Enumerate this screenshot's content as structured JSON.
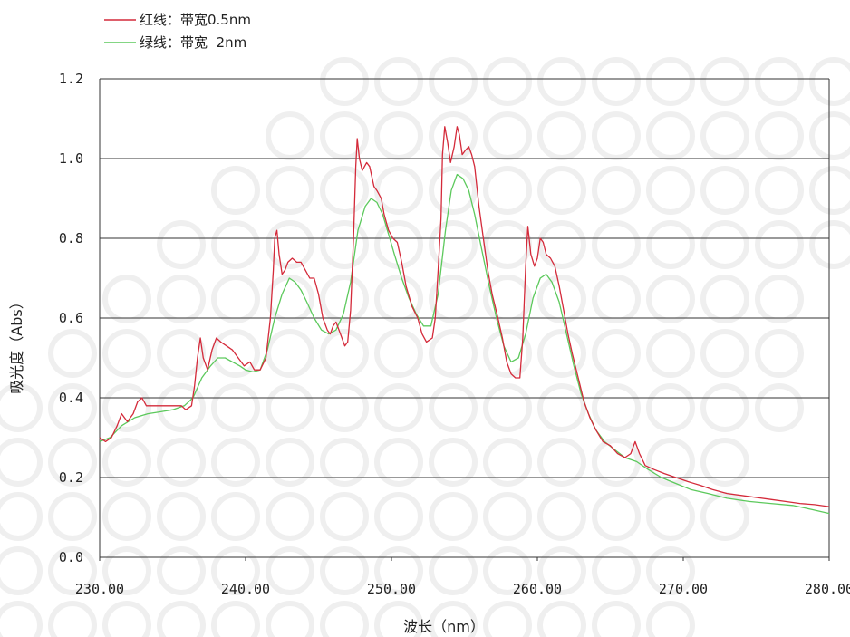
{
  "chart_data": {
    "type": "line",
    "xlabel": "波长（nm）",
    "ylabel": "吸光度（Abs）",
    "xlim": [
      230,
      280
    ],
    "ylim": [
      0,
      1.2
    ],
    "xticks": [
      "230.00",
      "240.00",
      "250.00",
      "260.00",
      "270.00",
      "280.00"
    ],
    "yticks": [
      "0.0",
      "0.2",
      "0.4",
      "0.6",
      "0.8",
      "1.0",
      "1.2"
    ],
    "grid": "horizontal",
    "legend_position": "top-left",
    "series": [
      {
        "name": "红线：带宽0.5nm",
        "color": "#d42a3a",
        "points": [
          [
            230.0,
            0.3
          ],
          [
            230.4,
            0.29
          ],
          [
            230.8,
            0.3
          ],
          [
            231.2,
            0.33
          ],
          [
            231.5,
            0.36
          ],
          [
            231.9,
            0.34
          ],
          [
            232.3,
            0.36
          ],
          [
            232.6,
            0.39
          ],
          [
            232.9,
            0.4
          ],
          [
            233.2,
            0.38
          ],
          [
            233.6,
            0.38
          ],
          [
            234.0,
            0.38
          ],
          [
            234.4,
            0.38
          ],
          [
            234.8,
            0.38
          ],
          [
            235.2,
            0.38
          ],
          [
            235.6,
            0.38
          ],
          [
            235.9,
            0.37
          ],
          [
            236.3,
            0.38
          ],
          [
            236.5,
            0.43
          ],
          [
            236.7,
            0.5
          ],
          [
            236.9,
            0.55
          ],
          [
            237.1,
            0.5
          ],
          [
            237.4,
            0.47
          ],
          [
            237.7,
            0.52
          ],
          [
            238.0,
            0.55
          ],
          [
            238.3,
            0.54
          ],
          [
            238.7,
            0.53
          ],
          [
            239.1,
            0.52
          ],
          [
            239.5,
            0.5
          ],
          [
            239.9,
            0.48
          ],
          [
            240.3,
            0.49
          ],
          [
            240.6,
            0.47
          ],
          [
            241.0,
            0.47
          ],
          [
            241.4,
            0.5
          ],
          [
            241.7,
            0.6
          ],
          [
            241.9,
            0.72
          ],
          [
            242.0,
            0.8
          ],
          [
            242.15,
            0.82
          ],
          [
            242.3,
            0.76
          ],
          [
            242.5,
            0.71
          ],
          [
            242.7,
            0.72
          ],
          [
            242.9,
            0.74
          ],
          [
            243.2,
            0.75
          ],
          [
            243.5,
            0.74
          ],
          [
            243.8,
            0.74
          ],
          [
            244.1,
            0.72
          ],
          [
            244.4,
            0.7
          ],
          [
            244.7,
            0.7
          ],
          [
            245.0,
            0.66
          ],
          [
            245.3,
            0.6
          ],
          [
            245.6,
            0.57
          ],
          [
            245.8,
            0.56
          ],
          [
            246.0,
            0.58
          ],
          [
            246.2,
            0.59
          ],
          [
            246.5,
            0.56
          ],
          [
            246.8,
            0.53
          ],
          [
            247.0,
            0.54
          ],
          [
            247.2,
            0.62
          ],
          [
            247.4,
            0.8
          ],
          [
            247.55,
            0.98
          ],
          [
            247.65,
            1.05
          ],
          [
            247.8,
            1.0
          ],
          [
            248.0,
            0.97
          ],
          [
            248.3,
            0.99
          ],
          [
            248.5,
            0.98
          ],
          [
            248.8,
            0.93
          ],
          [
            249.0,
            0.92
          ],
          [
            249.3,
            0.9
          ],
          [
            249.5,
            0.86
          ],
          [
            249.8,
            0.82
          ],
          [
            250.1,
            0.8
          ],
          [
            250.4,
            0.79
          ],
          [
            250.7,
            0.74
          ],
          [
            251.0,
            0.68
          ],
          [
            251.4,
            0.63
          ],
          [
            251.8,
            0.6
          ],
          [
            252.1,
            0.56
          ],
          [
            252.4,
            0.54
          ],
          [
            252.8,
            0.55
          ],
          [
            253.0,
            0.6
          ],
          [
            253.2,
            0.72
          ],
          [
            253.4,
            0.85
          ],
          [
            253.5,
            1.01
          ],
          [
            253.65,
            1.08
          ],
          [
            253.85,
            1.04
          ],
          [
            254.05,
            0.99
          ],
          [
            254.3,
            1.03
          ],
          [
            254.5,
            1.08
          ],
          [
            254.65,
            1.06
          ],
          [
            254.85,
            1.01
          ],
          [
            255.05,
            1.02
          ],
          [
            255.3,
            1.03
          ],
          [
            255.5,
            1.01
          ],
          [
            255.7,
            0.98
          ],
          [
            256.0,
            0.88
          ],
          [
            256.3,
            0.8
          ],
          [
            256.6,
            0.72
          ],
          [
            256.9,
            0.66
          ],
          [
            257.3,
            0.6
          ],
          [
            257.6,
            0.55
          ],
          [
            257.9,
            0.49
          ],
          [
            258.2,
            0.46
          ],
          [
            258.5,
            0.45
          ],
          [
            258.8,
            0.45
          ],
          [
            259.0,
            0.55
          ],
          [
            259.2,
            0.73
          ],
          [
            259.35,
            0.83
          ],
          [
            259.55,
            0.76
          ],
          [
            259.8,
            0.73
          ],
          [
            260.0,
            0.75
          ],
          [
            260.2,
            0.8
          ],
          [
            260.4,
            0.79
          ],
          [
            260.6,
            0.76
          ],
          [
            260.9,
            0.75
          ],
          [
            261.2,
            0.73
          ],
          [
            261.5,
            0.68
          ],
          [
            261.8,
            0.62
          ],
          [
            262.1,
            0.56
          ],
          [
            262.4,
            0.51
          ],
          [
            262.8,
            0.45
          ],
          [
            263.2,
            0.39
          ],
          [
            263.6,
            0.35
          ],
          [
            264.0,
            0.32
          ],
          [
            264.5,
            0.29
          ],
          [
            265.0,
            0.28
          ],
          [
            265.5,
            0.26
          ],
          [
            266.0,
            0.25
          ],
          [
            266.4,
            0.26
          ],
          [
            266.7,
            0.29
          ],
          [
            267.0,
            0.26
          ],
          [
            267.4,
            0.23
          ],
          [
            268.0,
            0.22
          ],
          [
            268.7,
            0.21
          ],
          [
            269.5,
            0.2
          ],
          [
            270.3,
            0.19
          ],
          [
            271.2,
            0.18
          ],
          [
            272.0,
            0.17
          ],
          [
            273.0,
            0.16
          ],
          [
            274.0,
            0.155
          ],
          [
            275.0,
            0.15
          ],
          [
            276.0,
            0.145
          ],
          [
            277.0,
            0.14
          ],
          [
            278.0,
            0.135
          ],
          [
            279.0,
            0.132
          ],
          [
            280.0,
            0.127
          ]
        ]
      },
      {
        "name": "绿线：带宽  2nm",
        "color": "#5cc95c",
        "points": [
          [
            230.0,
            0.29
          ],
          [
            230.7,
            0.3
          ],
          [
            231.5,
            0.33
          ],
          [
            232.4,
            0.35
          ],
          [
            233.3,
            0.36
          ],
          [
            234.2,
            0.365
          ],
          [
            235.0,
            0.37
          ],
          [
            235.8,
            0.38
          ],
          [
            236.4,
            0.4
          ],
          [
            237.0,
            0.45
          ],
          [
            237.6,
            0.48
          ],
          [
            238.1,
            0.5
          ],
          [
            238.6,
            0.5
          ],
          [
            239.1,
            0.49
          ],
          [
            239.6,
            0.48
          ],
          [
            240.0,
            0.47
          ],
          [
            240.5,
            0.465
          ],
          [
            241.0,
            0.47
          ],
          [
            241.5,
            0.52
          ],
          [
            242.0,
            0.6
          ],
          [
            242.5,
            0.66
          ],
          [
            243.0,
            0.7
          ],
          [
            243.4,
            0.69
          ],
          [
            243.8,
            0.67
          ],
          [
            244.2,
            0.64
          ],
          [
            244.7,
            0.6
          ],
          [
            245.2,
            0.57
          ],
          [
            245.7,
            0.56
          ],
          [
            246.2,
            0.57
          ],
          [
            246.7,
            0.61
          ],
          [
            247.2,
            0.69
          ],
          [
            247.7,
            0.82
          ],
          [
            248.2,
            0.88
          ],
          [
            248.6,
            0.9
          ],
          [
            249.0,
            0.89
          ],
          [
            249.4,
            0.86
          ],
          [
            249.8,
            0.81
          ],
          [
            250.2,
            0.76
          ],
          [
            250.7,
            0.7
          ],
          [
            251.2,
            0.65
          ],
          [
            251.7,
            0.61
          ],
          [
            252.2,
            0.58
          ],
          [
            252.7,
            0.58
          ],
          [
            253.2,
            0.66
          ],
          [
            253.7,
            0.82
          ],
          [
            254.1,
            0.92
          ],
          [
            254.5,
            0.96
          ],
          [
            254.9,
            0.95
          ],
          [
            255.3,
            0.92
          ],
          [
            255.7,
            0.86
          ],
          [
            256.2,
            0.77
          ],
          [
            256.7,
            0.68
          ],
          [
            257.2,
            0.6
          ],
          [
            257.7,
            0.53
          ],
          [
            258.2,
            0.49
          ],
          [
            258.7,
            0.5
          ],
          [
            259.2,
            0.56
          ],
          [
            259.7,
            0.65
          ],
          [
            260.2,
            0.7
          ],
          [
            260.6,
            0.71
          ],
          [
            261.0,
            0.69
          ],
          [
            261.5,
            0.64
          ],
          [
            262.0,
            0.56
          ],
          [
            262.5,
            0.48
          ],
          [
            263.0,
            0.41
          ],
          [
            263.5,
            0.36
          ],
          [
            264.0,
            0.32
          ],
          [
            264.6,
            0.29
          ],
          [
            265.3,
            0.27
          ],
          [
            266.0,
            0.25
          ],
          [
            266.8,
            0.24
          ],
          [
            267.6,
            0.22
          ],
          [
            268.5,
            0.2
          ],
          [
            269.5,
            0.185
          ],
          [
            270.5,
            0.17
          ],
          [
            271.7,
            0.16
          ],
          [
            273.0,
            0.148
          ],
          [
            274.5,
            0.14
          ],
          [
            276.0,
            0.135
          ],
          [
            277.5,
            0.13
          ],
          [
            278.8,
            0.12
          ],
          [
            280.0,
            0.11
          ]
        ]
      }
    ]
  }
}
